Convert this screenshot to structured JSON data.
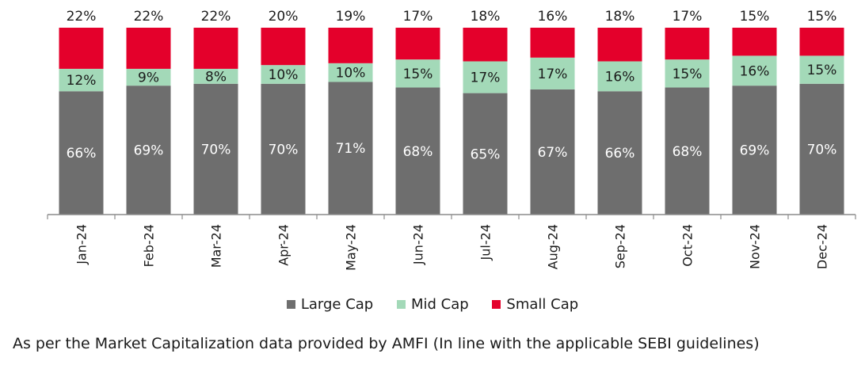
{
  "chart_data": {
    "type": "bar",
    "stacked": true,
    "percent_stacked": true,
    "categories": [
      "Jan-24",
      "Feb-24",
      "Mar-24",
      "Apr-24",
      "May-24",
      "Jun-24",
      "Jul-24",
      "Aug-24",
      "Sep-24",
      "Oct-24",
      "Nov-24",
      "Dec-24"
    ],
    "series": [
      {
        "name": "Large Cap",
        "values": [
          66,
          69,
          70,
          70,
          71,
          68,
          65,
          67,
          66,
          68,
          69,
          70
        ],
        "labels": [
          "66%",
          "69%",
          "70%",
          "70%",
          "71%",
          "68%",
          "65%",
          "67%",
          "66%",
          "68%",
          "69%",
          "70%"
        ],
        "color": "#6e6e6e"
      },
      {
        "name": "Mid Cap",
        "values": [
          12,
          9,
          8,
          10,
          10,
          15,
          17,
          17,
          16,
          15,
          16,
          15
        ],
        "labels": [
          "12%",
          "9%",
          "8%",
          "10%",
          "10%",
          "15%",
          "17%",
          "17%",
          "16%",
          "15%",
          "16%",
          "15%"
        ],
        "color": "#a3d9b8"
      },
      {
        "name": "Small Cap",
        "values": [
          22,
          22,
          22,
          20,
          19,
          17,
          18,
          16,
          18,
          17,
          15,
          15
        ],
        "labels": [
          "22%",
          "22%",
          "22%",
          "20%",
          "19%",
          "17%",
          "18%",
          "16%",
          "18%",
          "17%",
          "15%",
          "15%"
        ],
        "color": "#e4002b"
      }
    ],
    "ylim": [
      0,
      100
    ],
    "grid": false,
    "legend_position": "bottom"
  },
  "legend": {
    "items": [
      {
        "label": "Large Cap",
        "color": "#6e6e6e"
      },
      {
        "label": "Mid Cap",
        "color": "#a3d9b8"
      },
      {
        "label": "Small Cap",
        "color": "#e4002b"
      }
    ]
  },
  "footnote": "As per the Market Capitalization data provided by AMFI (In line with the applicable SEBI guidelines)"
}
